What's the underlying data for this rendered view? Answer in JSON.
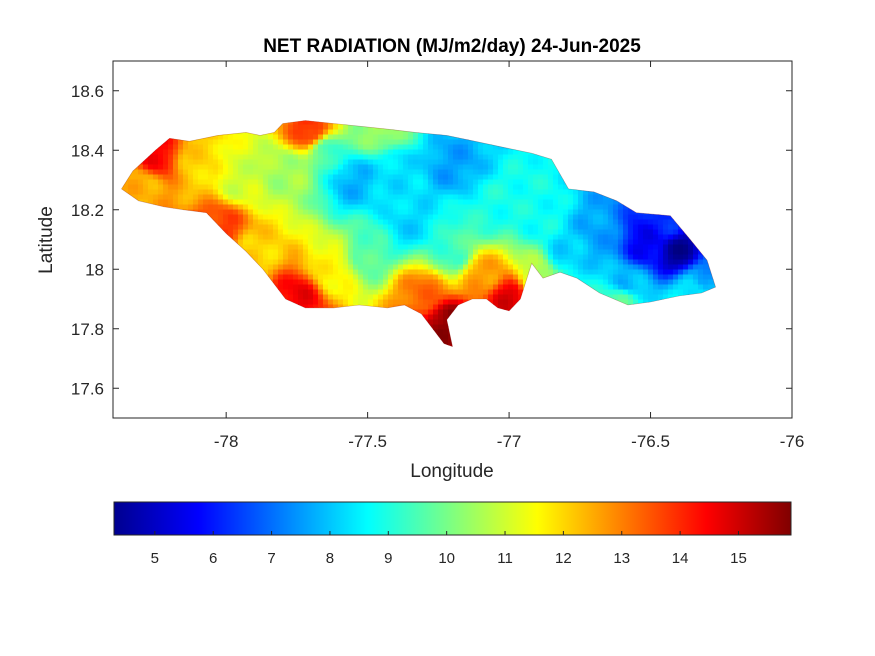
{
  "chart_data": {
    "type": "heatmap",
    "title": "NET RADIATION (MJ/m2/day) 24-Jun-2025",
    "xlabel": "Longitude",
    "ylabel": "Latitude",
    "xlim": [
      -78.4,
      -76
    ],
    "ylim": [
      17.5,
      18.7
    ],
    "x_ticks": [
      -78,
      -77.5,
      -77,
      -76.5,
      -76
    ],
    "x_tick_labels": [
      "-78",
      "-77.5",
      "-77",
      "-76.5",
      "-76"
    ],
    "y_ticks": [
      17.6,
      17.8,
      18,
      18.2,
      18.4,
      18.6
    ],
    "y_tick_labels": [
      "17.6",
      "17.8",
      "18",
      "18.2",
      "18.4",
      "18.6"
    ],
    "grid": false,
    "colormap": "jet",
    "colorbar": {
      "orientation": "horizontal",
      "location": "below",
      "clim": [
        4.3,
        15.9
      ],
      "ticks": [
        5,
        6,
        7,
        8,
        9,
        10,
        11,
        12,
        13,
        14,
        15
      ],
      "tick_labels": [
        "5",
        "6",
        "7",
        "8",
        "9",
        "10",
        "11",
        "12",
        "13",
        "14",
        "15"
      ]
    },
    "region_outline": [
      [
        -78.37,
        18.27
      ],
      [
        -78.33,
        18.33
      ],
      [
        -78.25,
        18.4
      ],
      [
        -78.2,
        18.44
      ],
      [
        -78.13,
        18.43
      ],
      [
        -78.03,
        18.45
      ],
      [
        -77.93,
        18.46
      ],
      [
        -77.88,
        18.45
      ],
      [
        -77.83,
        18.46
      ],
      [
        -77.8,
        18.49
      ],
      [
        -77.72,
        18.5
      ],
      [
        -77.62,
        18.49
      ],
      [
        -77.52,
        18.48
      ],
      [
        -77.42,
        18.47
      ],
      [
        -77.33,
        18.46
      ],
      [
        -77.22,
        18.45
      ],
      [
        -77.12,
        18.43
      ],
      [
        -77.02,
        18.41
      ],
      [
        -76.92,
        18.39
      ],
      [
        -76.85,
        18.37
      ],
      [
        -76.79,
        18.27
      ],
      [
        -76.7,
        18.26
      ],
      [
        -76.62,
        18.23
      ],
      [
        -76.55,
        18.19
      ],
      [
        -76.43,
        18.18
      ],
      [
        -76.36,
        18.1
      ],
      [
        -76.3,
        18.03
      ],
      [
        -76.27,
        17.94
      ],
      [
        -76.32,
        17.92
      ],
      [
        -76.4,
        17.91
      ],
      [
        -76.5,
        17.89
      ],
      [
        -76.58,
        17.88
      ],
      [
        -76.68,
        17.92
      ],
      [
        -76.76,
        17.97
      ],
      [
        -76.82,
        17.99
      ],
      [
        -76.88,
        17.97
      ],
      [
        -76.92,
        18.02
      ],
      [
        -76.96,
        17.9
      ],
      [
        -77.0,
        17.86
      ],
      [
        -77.04,
        17.87
      ],
      [
        -77.08,
        17.9
      ],
      [
        -77.13,
        17.9
      ],
      [
        -77.18,
        17.88
      ],
      [
        -77.22,
        17.83
      ],
      [
        -77.2,
        17.74
      ],
      [
        -77.23,
        17.75
      ],
      [
        -77.27,
        17.8
      ],
      [
        -77.31,
        17.85
      ],
      [
        -77.37,
        17.88
      ],
      [
        -77.43,
        17.87
      ],
      [
        -77.53,
        17.88
      ],
      [
        -77.62,
        17.87
      ],
      [
        -77.72,
        17.87
      ],
      [
        -77.79,
        17.9
      ],
      [
        -77.87,
        18.0
      ],
      [
        -77.93,
        18.06
      ],
      [
        -78.0,
        18.12
      ],
      [
        -78.07,
        18.19
      ],
      [
        -78.15,
        18.2
      ],
      [
        -78.22,
        18.21
      ],
      [
        -78.31,
        18.23
      ],
      [
        -78.37,
        18.27
      ]
    ],
    "field_sources": [
      {
        "lon": -76.4,
        "lat": 18.06,
        "value": 4.6
      },
      {
        "lon": -76.52,
        "lat": 18.09,
        "value": 5.6
      },
      {
        "lon": -76.45,
        "lat": 18.15,
        "value": 6.2
      },
      {
        "lon": -76.3,
        "lat": 17.97,
        "value": 7.5
      },
      {
        "lon": -76.58,
        "lat": 17.95,
        "value": 7.8
      },
      {
        "lon": -76.68,
        "lat": 18.12,
        "value": 7.6
      },
      {
        "lon": -76.8,
        "lat": 18.05,
        "value": 8.2
      },
      {
        "lon": -76.9,
        "lat": 18.18,
        "value": 8.8
      },
      {
        "lon": -77.2,
        "lat": 18.35,
        "value": 7.6
      },
      {
        "lon": -77.4,
        "lat": 18.34,
        "value": 8.3
      },
      {
        "lon": -77.55,
        "lat": 18.3,
        "value": 7.8
      },
      {
        "lon": -77.35,
        "lat": 18.15,
        "value": 8.2
      },
      {
        "lon": -77.05,
        "lat": 18.2,
        "value": 8.9
      },
      {
        "lon": -77.65,
        "lat": 18.4,
        "value": 9.4
      },
      {
        "lon": -77.8,
        "lat": 18.33,
        "value": 10.5
      },
      {
        "lon": -77.95,
        "lat": 18.3,
        "value": 11.0
      },
      {
        "lon": -78.1,
        "lat": 18.35,
        "value": 12.0
      },
      {
        "lon": -78.25,
        "lat": 18.38,
        "value": 14.4
      },
      {
        "lon": -78.3,
        "lat": 18.28,
        "value": 12.4
      },
      {
        "lon": -78.02,
        "lat": 18.14,
        "value": 13.8
      },
      {
        "lon": -77.7,
        "lat": 18.46,
        "value": 14.0
      },
      {
        "lon": -77.75,
        "lat": 17.9,
        "value": 14.6
      },
      {
        "lon": -77.62,
        "lat": 18.0,
        "value": 11.6
      },
      {
        "lon": -77.22,
        "lat": 17.82,
        "value": 15.7
      },
      {
        "lon": -77.3,
        "lat": 17.92,
        "value": 13.2
      },
      {
        "lon": -77.0,
        "lat": 17.9,
        "value": 14.8
      },
      {
        "lon": -77.1,
        "lat": 17.98,
        "value": 12.6
      },
      {
        "lon": -77.5,
        "lat": 18.05,
        "value": 9.6
      },
      {
        "lon": -77.2,
        "lat": 18.05,
        "value": 9.3
      },
      {
        "lon": -76.9,
        "lat": 17.98,
        "value": 10.8
      },
      {
        "lon": -76.6,
        "lat": 17.9,
        "value": 9.6
      },
      {
        "lon": -76.35,
        "lat": 17.92,
        "value": 8.6
      },
      {
        "lon": -77.9,
        "lat": 18.05,
        "value": 12.0
      },
      {
        "lon": -77.45,
        "lat": 18.46,
        "value": 10.4
      }
    ]
  }
}
